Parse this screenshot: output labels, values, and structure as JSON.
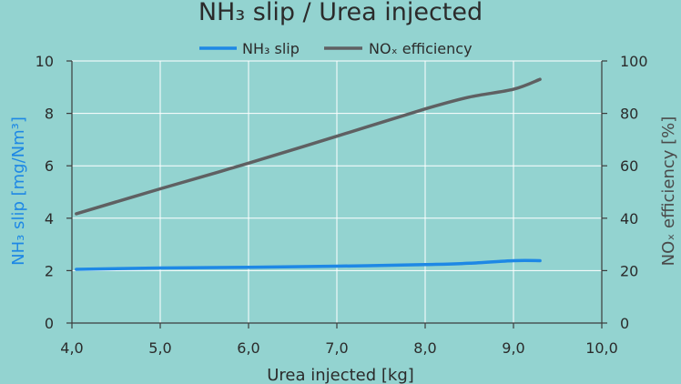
{
  "chart_data": {
    "type": "line",
    "title": "NH₃ slip / Urea injected",
    "xlabel": "Urea injected [kg]",
    "ylabel_left": "NH₃ slip [mg/Nm³]",
    "ylabel_right": "NOₓ efficiency [%]",
    "xlim": [
      4.0,
      10.0
    ],
    "ylim_left": [
      0,
      10
    ],
    "ylim_right": [
      0,
      100
    ],
    "x_ticks": [
      "4,0",
      "5,0",
      "6,0",
      "7,0",
      "8,0",
      "9,0",
      "10,0"
    ],
    "y_left_ticks": [
      "0",
      "2",
      "4",
      "6",
      "8",
      "10"
    ],
    "y_right_ticks": [
      "0",
      "20",
      "40",
      "60",
      "80",
      "100"
    ],
    "grid": true,
    "legend_position": "top-center",
    "series": [
      {
        "name": "NH₃ slip",
        "axis": "left",
        "color": "#1e88e5",
        "x": [
          4.05,
          5.0,
          6.0,
          7.0,
          8.0,
          8.5,
          9.0,
          9.3
        ],
        "y": [
          2.05,
          2.1,
          2.13,
          2.17,
          2.23,
          2.28,
          2.38,
          2.38
        ]
      },
      {
        "name": "NOₓ efficiency",
        "axis": "right",
        "color": "#5f6062",
        "x": [
          4.05,
          5.0,
          6.0,
          7.0,
          8.0,
          8.5,
          9.0,
          9.3
        ],
        "y": [
          41.7,
          51.2,
          61.0,
          71.3,
          81.7,
          86.2,
          89.2,
          93.0
        ]
      }
    ]
  },
  "style": {
    "background": "#93d3d0",
    "grid_color": "#ffffff",
    "text_color": "#2b2b2b",
    "left_axis_color": "#1e88e5",
    "right_axis_color": "#4a4a4a"
  }
}
